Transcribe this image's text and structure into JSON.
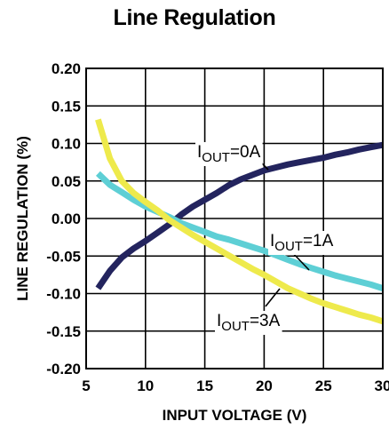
{
  "chart_data": {
    "type": "line",
    "title": "Line Regulation",
    "xlabel": "INPUT VOLTAGE (V)",
    "ylabel": "LINE REGULATION  (%)",
    "xlim": [
      5,
      30
    ],
    "ylim": [
      -0.2,
      0.2
    ],
    "x_ticks": [
      "5",
      "10",
      "15",
      "20",
      "25",
      "30"
    ],
    "y_ticks": [
      "0.20",
      "0.15",
      "0.10",
      "0.05",
      "0.00",
      "-0.05",
      "-0.10",
      "-0.15",
      "-0.20"
    ],
    "grid": true,
    "series": [
      {
        "name": "IOUT=0A",
        "label_main": "I",
        "label_sub": "OUT",
        "label_rest": "=0A",
        "color": "#23245e",
        "points": [
          [
            6,
            -0.093
          ],
          [
            7,
            -0.07
          ],
          [
            8,
            -0.052
          ],
          [
            9,
            -0.04
          ],
          [
            10,
            -0.03
          ],
          [
            11,
            -0.019
          ],
          [
            12,
            -0.008
          ],
          [
            13,
            0.005
          ],
          [
            14,
            0.016
          ],
          [
            15,
            0.025
          ],
          [
            16,
            0.034
          ],
          [
            17,
            0.044
          ],
          [
            18,
            0.052
          ],
          [
            19,
            0.058
          ],
          [
            20,
            0.064
          ],
          [
            21,
            0.068
          ],
          [
            22,
            0.072
          ],
          [
            23,
            0.075
          ],
          [
            24,
            0.078
          ],
          [
            25,
            0.081
          ],
          [
            26,
            0.085
          ],
          [
            27,
            0.088
          ],
          [
            28,
            0.092
          ],
          [
            29,
            0.095
          ],
          [
            30,
            0.098
          ]
        ]
      },
      {
        "name": "IOUT=1A",
        "label_main": "I",
        "label_sub": "OUT",
        "label_rest": "=1A",
        "color": "#5ecfd5",
        "points": [
          [
            6,
            0.06
          ],
          [
            7,
            0.045
          ],
          [
            8,
            0.035
          ],
          [
            9,
            0.025
          ],
          [
            10,
            0.016
          ],
          [
            11,
            0.009
          ],
          [
            12,
            0.002
          ],
          [
            13,
            -0.006
          ],
          [
            14,
            -0.012
          ],
          [
            15,
            -0.018
          ],
          [
            16,
            -0.024
          ],
          [
            17,
            -0.028
          ],
          [
            18,
            -0.033
          ],
          [
            19,
            -0.038
          ],
          [
            20,
            -0.043
          ],
          [
            21,
            -0.049
          ],
          [
            22,
            -0.055
          ],
          [
            23,
            -0.061
          ],
          [
            24,
            -0.066
          ],
          [
            25,
            -0.071
          ],
          [
            26,
            -0.076
          ],
          [
            27,
            -0.08
          ],
          [
            28,
            -0.084
          ],
          [
            29,
            -0.088
          ],
          [
            30,
            -0.093
          ]
        ]
      },
      {
        "name": "IOUT=3A",
        "label_main": "I",
        "label_sub": "OUT",
        "label_rest": "=3A",
        "color": "#eeea4c",
        "points": [
          [
            6,
            0.132
          ],
          [
            7,
            0.08
          ],
          [
            8,
            0.05
          ],
          [
            9,
            0.034
          ],
          [
            10,
            0.022
          ],
          [
            11,
            0.011
          ],
          [
            12,
            -0.002
          ],
          [
            13,
            -0.012
          ],
          [
            14,
            -0.022
          ],
          [
            15,
            -0.031
          ],
          [
            16,
            -0.04
          ],
          [
            17,
            -0.049
          ],
          [
            18,
            -0.058
          ],
          [
            19,
            -0.067
          ],
          [
            20,
            -0.075
          ],
          [
            21,
            -0.084
          ],
          [
            22,
            -0.093
          ],
          [
            23,
            -0.1
          ],
          [
            24,
            -0.107
          ],
          [
            25,
            -0.113
          ],
          [
            26,
            -0.118
          ],
          [
            27,
            -0.123
          ],
          [
            28,
            -0.128
          ],
          [
            29,
            -0.132
          ],
          [
            30,
            -0.137
          ]
        ]
      }
    ]
  }
}
